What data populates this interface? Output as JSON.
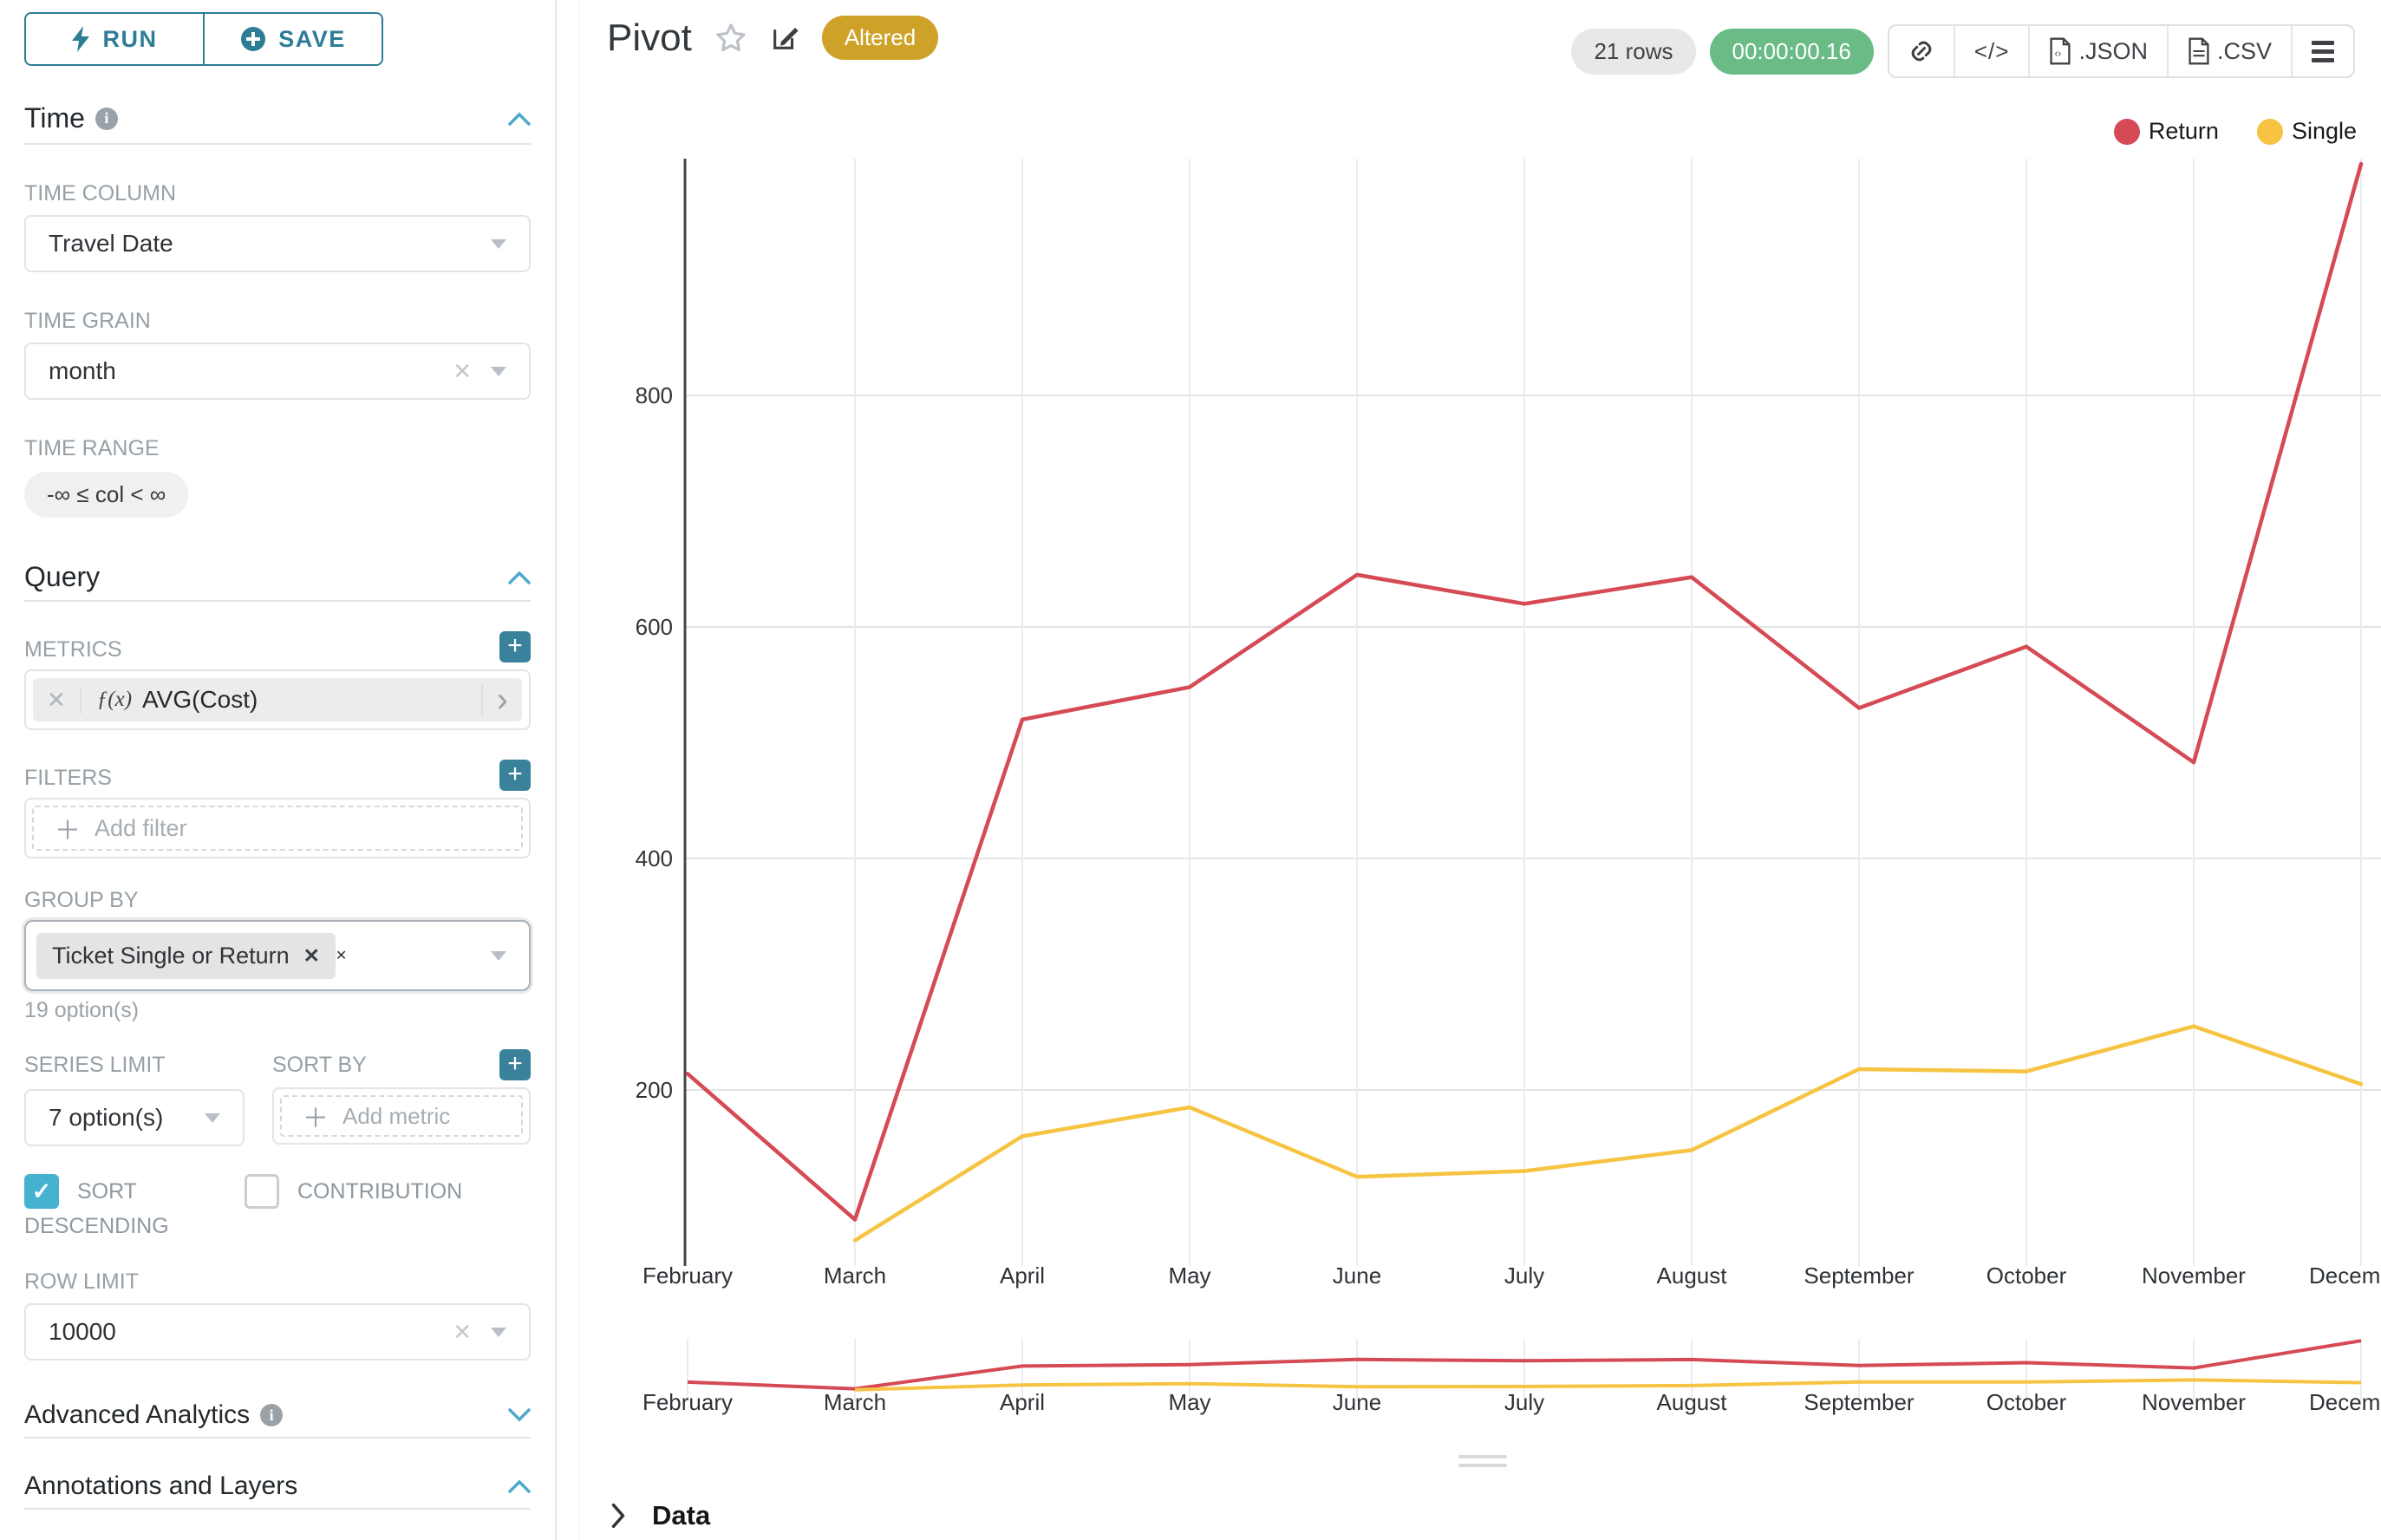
{
  "sidebar": {
    "run_label": "RUN",
    "save_label": "SAVE",
    "time_header": "Time",
    "time_column_label": "TIME COLUMN",
    "time_column_value": "Travel Date",
    "time_grain_label": "TIME GRAIN",
    "time_grain_value": "month",
    "time_range_label": "TIME RANGE",
    "time_range_value": "-∞ ≤ col < ∞",
    "query_header": "Query",
    "metrics_label": "METRICS",
    "metric_fx": "ƒ(x)",
    "metric_value": "AVG(Cost)",
    "filters_label": "FILTERS",
    "add_filter_label": "Add filter",
    "group_by_label": "GROUP BY",
    "group_by_tag": "Ticket Single or Return",
    "group_by_options_hint": "19 option(s)",
    "series_limit_label": "SERIES LIMIT",
    "series_limit_value": "7 option(s)",
    "sort_by_label": "SORT BY",
    "add_metric_label": "Add metric",
    "sort_descending_label": "SORT DESCENDING",
    "contribution_label": "CONTRIBUTION",
    "row_limit_label": "ROW LIMIT",
    "row_limit_value": "10000",
    "advanced_analytics_header": "Advanced Analytics",
    "annotations_header": "Annotations and Layers"
  },
  "header": {
    "title": "Pivot",
    "altered_badge": "Altered",
    "rows_badge": "21 rows",
    "timer": "00:00:00.16",
    "export_json_label": ".JSON",
    "export_csv_label": ".CSV",
    "code_glyph": "</>"
  },
  "footer": {
    "data_panel_label": "Data"
  },
  "colors": {
    "accent_teal": "#2E7D96",
    "plus_button_teal": "#3A819B",
    "chevron_blue": "#4FA8CC",
    "checkbox_teal": "#45B2D0",
    "altered_badge_bg": "#CEA229",
    "timer_badge_bg": "#6ABB86",
    "rows_badge_bg": "#E8E8E8",
    "axis_line": "#444444",
    "gridline": "#E6E6E8"
  },
  "chart_data": {
    "type": "line",
    "x": [
      "February",
      "March",
      "April",
      "May",
      "June",
      "July",
      "August",
      "September",
      "October",
      "November",
      "December"
    ],
    "series": [
      {
        "name": "Return",
        "color": "#D54A55",
        "values": [
          214,
          88,
          520,
          548,
          645,
          620,
          643,
          530,
          583,
          483,
          1000
        ]
      },
      {
        "name": "Single",
        "color": "#F6C442",
        "values": [
          null,
          70,
          160,
          185,
          125,
          130,
          148,
          218,
          216,
          255,
          205
        ]
      }
    ],
    "y_ticks": [
      200,
      400,
      600,
      800
    ],
    "ylim": [
      48,
      1004
    ],
    "grid": true,
    "legend_position": "top-right",
    "has_minimap": true,
    "minimap_x": [
      "February",
      "March",
      "April",
      "May",
      "June",
      "July",
      "August",
      "September",
      "October",
      "November",
      "December"
    ]
  }
}
